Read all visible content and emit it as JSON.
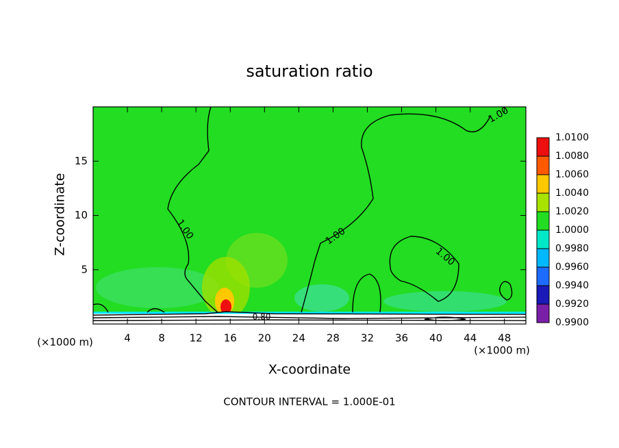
{
  "chart_data": {
    "type": "contour",
    "title": "saturation ratio",
    "x_label": "X-coordinate",
    "y_label": "Z-coordinate",
    "x_unit": "(×1000 m)",
    "y_unit": "(×1000 m)",
    "xlim": [
      0,
      50.5
    ],
    "xticks": [
      4,
      8,
      12,
      16,
      20,
      24,
      28,
      32,
      36,
      40,
      44,
      48
    ],
    "ylim": [
      0,
      20
    ],
    "yticks": [
      5,
      10,
      15
    ],
    "colorbar_ticks": [
      {
        "value": 0.99,
        "label": "0.9900"
      },
      {
        "value": 0.992,
        "label": "0.9920"
      },
      {
        "value": 0.994,
        "label": "0.9940"
      },
      {
        "value": 0.996,
        "label": "0.9960"
      },
      {
        "value": 0.998,
        "label": "0.9980"
      },
      {
        "value": 1.0,
        "label": "1.0000"
      },
      {
        "value": 1.002,
        "label": "1.0020"
      },
      {
        "value": 1.004,
        "label": "1.0040"
      },
      {
        "value": 1.006,
        "label": "1.0060"
      },
      {
        "value": 1.008,
        "label": "1.0080"
      },
      {
        "value": 1.01,
        "label": "1.0100"
      }
    ],
    "colorscale": [
      "#7a1fa8",
      "#1a1ab8",
      "#1e6cff",
      "#00b8ff",
      "#00e8c8",
      "#22dd22",
      "#a8e400",
      "#ffc800",
      "#ff5a00",
      "#ee1010"
    ],
    "contour_levels": [
      {
        "value": 1.0,
        "label": "1.00"
      },
      {
        "value": 0.8,
        "label": "0.80"
      }
    ],
    "footer": "CONTOUR INTERVAL = 1.000E-01"
  }
}
